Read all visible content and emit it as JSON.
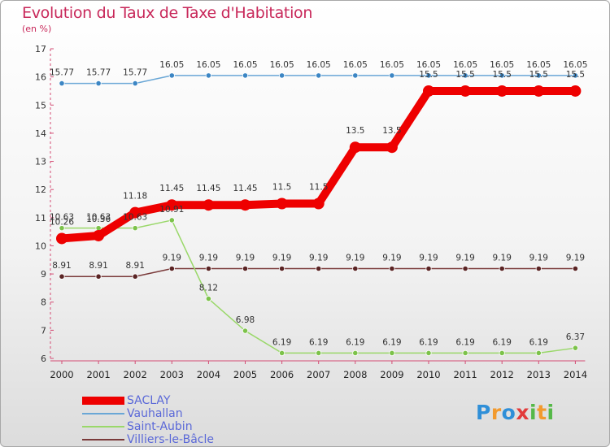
{
  "title": "Evolution du Taux de Taxe d'Habitation",
  "subtitle": "(en %)",
  "brand": {
    "name": "Proxiti",
    "letters": [
      {
        "ch": "P",
        "color": "#2f8fd8"
      },
      {
        "ch": "r",
        "color": "#f29a2e"
      },
      {
        "ch": "o",
        "color": "#2f8fd8"
      },
      {
        "ch": "x",
        "color": "#e23b3b"
      },
      {
        "ch": "i",
        "color": "#55b848"
      },
      {
        "ch": "t",
        "color": "#f29a2e"
      },
      {
        "ch": "i",
        "color": "#55b848"
      }
    ]
  },
  "chart_data": {
    "type": "line",
    "x": [
      "2000",
      "2001",
      "2002",
      "2003",
      "2004",
      "2005",
      "2006",
      "2007",
      "2008",
      "2009",
      "2010",
      "2011",
      "2012",
      "2013",
      "2014"
    ],
    "ylim": [
      6,
      17
    ],
    "yticks": [
      6,
      7,
      8,
      9,
      10,
      11,
      12,
      13,
      14,
      15,
      16,
      17
    ],
    "grid": false,
    "legend_position": "bottom-left",
    "series": [
      {
        "name": "SACLAY",
        "color": "#ee0000",
        "values": [
          10.26,
          10.36,
          11.18,
          11.45,
          11.45,
          11.45,
          11.5,
          11.5,
          13.5,
          13.5,
          15.5,
          15.5,
          15.5,
          15.5,
          15.5
        ],
        "labels": [
          "10.26",
          "10.36",
          "11.18",
          "11.45",
          "11.45",
          "11.45",
          "11.5",
          "11.5",
          "13.5",
          "13.5",
          "15.5",
          "15.5",
          "15.5",
          "15.5",
          "15.5"
        ]
      },
      {
        "name": "Vauhallan",
        "color": "#6aa7d6",
        "values": [
          15.77,
          15.77,
          15.77,
          16.05,
          16.05,
          16.05,
          16.05,
          16.05,
          16.05,
          16.05,
          16.05,
          16.05,
          16.05,
          16.05,
          16.05
        ],
        "labels": [
          "15.77",
          "15.77",
          "15.77",
          "16.05",
          "16.05",
          "16.05",
          "16.05",
          "16.05",
          "16.05",
          "16.05",
          "16.05",
          "16.05",
          "16.05",
          "16.05",
          "16.05"
        ]
      },
      {
        "name": "Saint-Aubin",
        "color": "#9ad86a",
        "values": [
          10.63,
          10.63,
          10.63,
          10.91,
          8.12,
          6.98,
          6.19,
          6.19,
          6.19,
          6.19,
          6.19,
          6.19,
          6.19,
          6.19,
          6.37
        ],
        "labels": [
          "10.63",
          "10.63",
          "10.63",
          "10.91",
          "8.12",
          "6.98",
          "6.19",
          "6.19",
          "6.19",
          "6.19",
          "6.19",
          "6.19",
          "6.19",
          "6.19",
          "6.37"
        ]
      },
      {
        "name": "Villiers-le-Bâcle",
        "color": "#7a3a3a",
        "values": [
          8.91,
          8.91,
          8.91,
          9.19,
          9.19,
          9.19,
          9.19,
          9.19,
          9.19,
          9.19,
          9.19,
          9.19,
          9.19,
          9.19,
          9.19
        ],
        "labels": [
          "8.91",
          "8.91",
          "8.91",
          "9.19",
          "9.19",
          "9.19",
          "9.19",
          "9.19",
          "9.19",
          "9.19",
          "9.19",
          "9.19",
          "9.19",
          "9.19",
          "9.19"
        ]
      }
    ]
  }
}
